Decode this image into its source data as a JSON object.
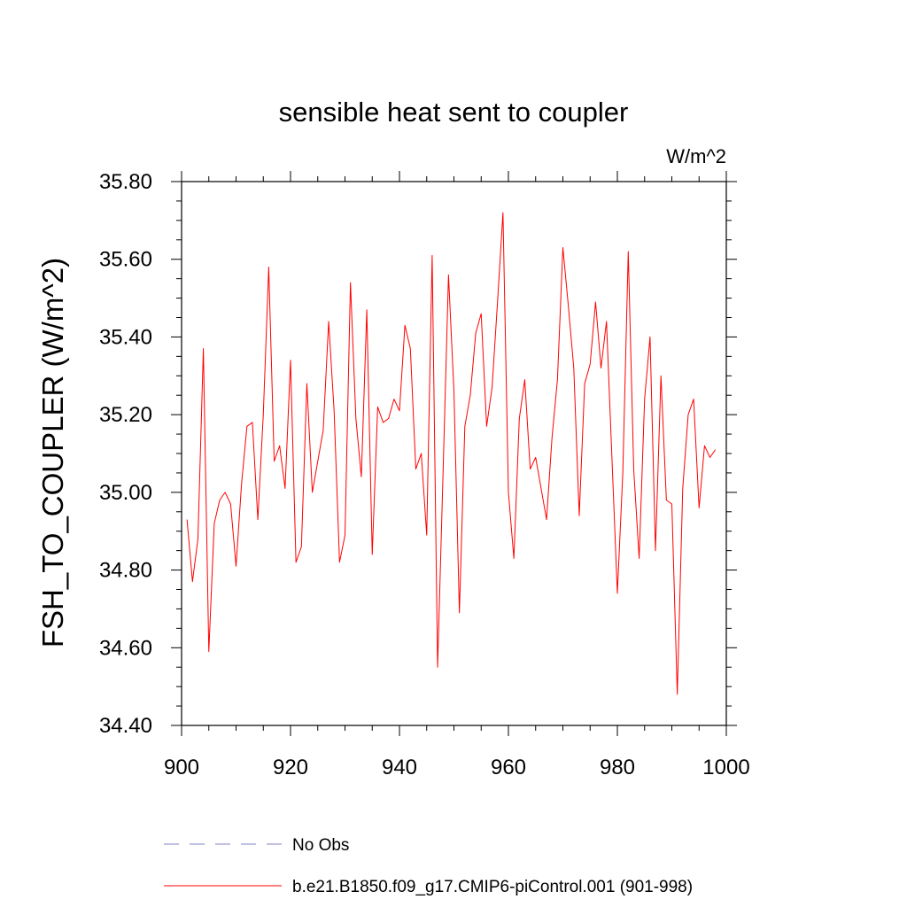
{
  "chart_data": {
    "type": "line",
    "title": "sensible heat sent to coupler",
    "units_label": "W/m^2",
    "xlabel": "",
    "ylabel": "FSH_TO_COUPLER  (W/m^2)",
    "xlim": [
      900,
      1000
    ],
    "ylim": [
      34.4,
      35.8
    ],
    "x_ticks": [
      900,
      920,
      940,
      960,
      980,
      1000
    ],
    "y_ticks": [
      34.4,
      34.6,
      34.8,
      35.0,
      35.2,
      35.4,
      35.6,
      35.8
    ],
    "x_tick_labels": [
      "900",
      "920",
      "940",
      "960",
      "980",
      "1000"
    ],
    "y_tick_labels": [
      "34.40",
      "34.60",
      "34.80",
      "35.00",
      "35.20",
      "35.40",
      "35.60",
      "35.80"
    ],
    "grid": false,
    "legend_position": "bottom",
    "legend": [
      {
        "label": "No Obs",
        "color": "#8080c0",
        "style": "dashed"
      },
      {
        "label": "b.e21.B1850.f09_g17.CMIP6-piControl.001 (901-998)",
        "color": "#ff0000",
        "style": "solid"
      }
    ],
    "series": [
      {
        "name": "b.e21.B1850.f09_g17.CMIP6-piControl.001 (901-998)",
        "color": "#ff0000",
        "x": [
          901,
          902,
          903,
          904,
          905,
          906,
          907,
          908,
          909,
          910,
          911,
          912,
          913,
          914,
          915,
          916,
          917,
          918,
          919,
          920,
          921,
          922,
          923,
          924,
          925,
          926,
          927,
          928,
          929,
          930,
          931,
          932,
          933,
          934,
          935,
          936,
          937,
          938,
          939,
          940,
          941,
          942,
          943,
          944,
          945,
          946,
          947,
          948,
          949,
          950,
          951,
          952,
          953,
          954,
          955,
          956,
          957,
          958,
          959,
          960,
          961,
          962,
          963,
          964,
          965,
          966,
          967,
          968,
          969,
          970,
          971,
          972,
          973,
          974,
          975,
          976,
          977,
          978,
          979,
          980,
          981,
          982,
          983,
          984,
          985,
          986,
          987,
          988,
          989,
          990,
          991,
          992,
          993,
          994,
          995,
          996,
          997,
          998
        ],
        "values": [
          34.93,
          34.77,
          34.88,
          35.37,
          34.59,
          34.92,
          34.98,
          35.0,
          34.97,
          34.81,
          35.02,
          35.17,
          35.18,
          34.93,
          35.2,
          35.58,
          35.08,
          35.12,
          35.01,
          35.34,
          34.82,
          34.86,
          35.28,
          35.0,
          35.08,
          35.16,
          35.44,
          35.21,
          34.82,
          34.89,
          35.54,
          35.19,
          35.04,
          35.47,
          34.84,
          35.22,
          35.18,
          35.19,
          35.24,
          35.21,
          35.43,
          35.37,
          35.06,
          35.1,
          34.89,
          35.61,
          34.55,
          35.05,
          35.56,
          35.26,
          34.69,
          35.17,
          35.25,
          35.41,
          35.46,
          35.17,
          35.27,
          35.49,
          35.72,
          35.0,
          34.83,
          35.19,
          35.29,
          35.06,
          35.09,
          35.01,
          34.93,
          35.14,
          35.29,
          35.63,
          35.48,
          35.32,
          34.94,
          35.28,
          35.33,
          35.49,
          35.32,
          35.44,
          35.09,
          34.74,
          35.05,
          35.62,
          35.06,
          34.83,
          35.24,
          35.4,
          34.85,
          35.3,
          34.98,
          34.97,
          34.48,
          35.01,
          35.2,
          35.24,
          34.96,
          35.12,
          35.09,
          35.11
        ]
      }
    ]
  }
}
